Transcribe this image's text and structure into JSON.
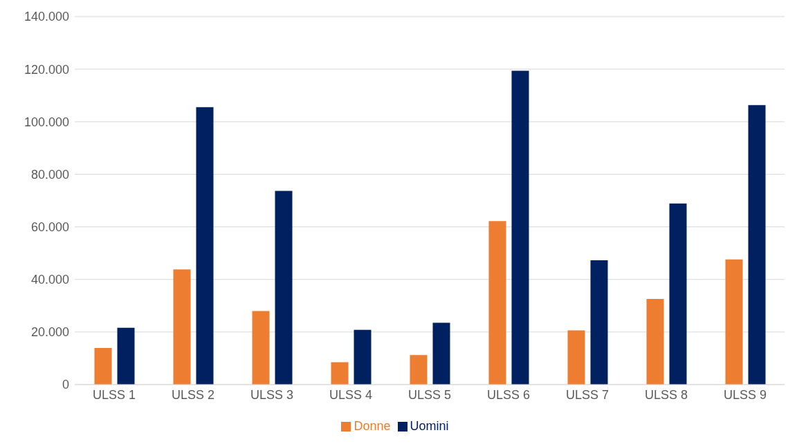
{
  "chart_data": {
    "type": "bar",
    "categories": [
      "ULSS 1",
      "ULSS 2",
      "ULSS 3",
      "ULSS 4",
      "ULSS 5",
      "ULSS 6",
      "ULSS 7",
      "ULSS 8",
      "ULSS 9"
    ],
    "series": [
      {
        "name": "Donne",
        "color": "#ed7d31",
        "values": [
          13900,
          43800,
          28000,
          8500,
          11200,
          62200,
          20600,
          32600,
          47600
        ]
      },
      {
        "name": "Uomini",
        "color": "#002060",
        "values": [
          21600,
          105500,
          73700,
          20800,
          23500,
          119400,
          47300,
          68900,
          106300
        ]
      }
    ],
    "ylim": [
      0,
      140000
    ],
    "yticks": [
      {
        "value": 0,
        "label": "0"
      },
      {
        "value": 20000,
        "label": "20.000"
      },
      {
        "value": 40000,
        "label": "40.000"
      },
      {
        "value": 60000,
        "label": "60.000"
      },
      {
        "value": 80000,
        "label": "80.000"
      },
      {
        "value": 100000,
        "label": "100.000"
      },
      {
        "value": 120000,
        "label": "120.000"
      },
      {
        "value": 140000,
        "label": "140.000"
      }
    ],
    "grid": "y",
    "legend": "bottom"
  }
}
